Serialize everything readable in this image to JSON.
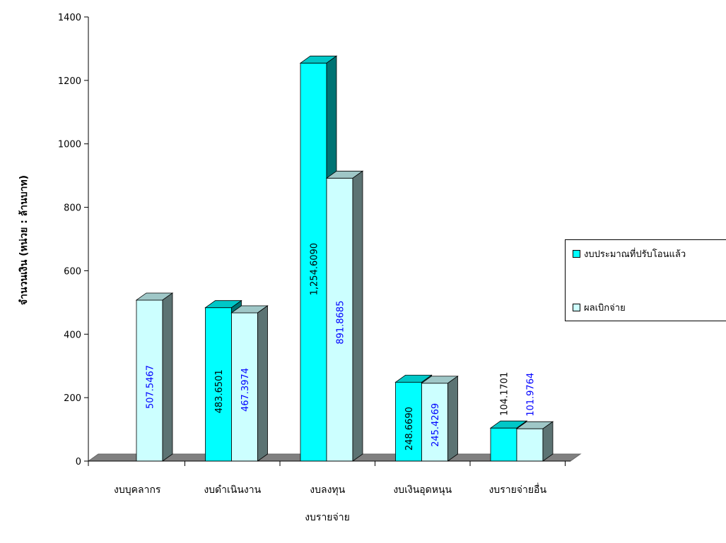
{
  "chart_data": {
    "type": "bar",
    "xlabel": "งบรายจ่าย",
    "ylabel": "จำนวนเงิน (หน่วย : ล้านบาท)",
    "ylim": [
      0,
      1400
    ],
    "yticks": [
      "0",
      "200",
      "400",
      "600",
      "800",
      "1000",
      "1200",
      "1400"
    ],
    "categories": [
      "งบบุคลากร",
      "งบดำเนินงาน",
      "งบลงทุน",
      "งบเงินอุดหนุน",
      "งบรายจ่ายอื่น"
    ],
    "series": [
      {
        "name": "งบประมาณที่ปรับโอนแล้ว",
        "values": [
          0,
          483.6501,
          1254.609,
          248.669,
          104.1701
        ],
        "labels": [
          "",
          "483.6501",
          "1,254.6090",
          "248.6690",
          "104.1701"
        ],
        "color": "#00FFFF",
        "label_color": "#000000"
      },
      {
        "name": "ผลเบิกจ่าย",
        "values": [
          507.5467,
          467.3974,
          891.8685,
          245.4269,
          101.9764
        ],
        "labels": [
          "507.5467",
          "467.3974",
          "891.8685",
          "245.4269",
          "101.9764"
        ],
        "color": "#CCFFFF",
        "label_color": "#0000FF"
      }
    ],
    "legend_position": "right",
    "grid": false
  }
}
